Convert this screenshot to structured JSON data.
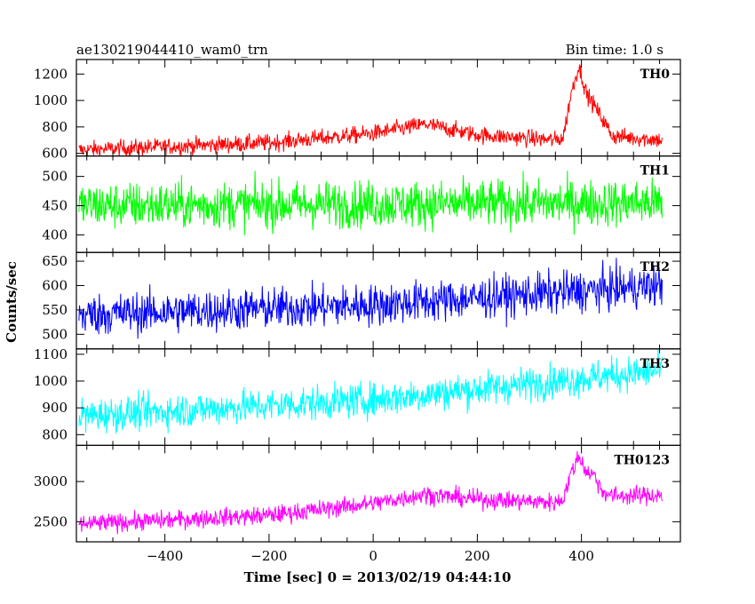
{
  "chart_data": {
    "type": "line",
    "title_left": "ae130219044410_wam0_trn",
    "title_right": "Bin time: 1.0 s",
    "xlabel": "Time [sec] 0 = 2013/02/19 04:44:10",
    "ylabel": "Counts/sec",
    "xlim": [
      -570,
      590
    ],
    "x_ticks": [
      -400,
      -200,
      0,
      200,
      400
    ],
    "x_range": [
      -565,
      555
    ],
    "grid": false,
    "panels": [
      {
        "name": "TH0",
        "color": "#ff0000",
        "ylim": [
          580,
          1310
        ],
        "y_ticks": [
          600,
          800,
          1000,
          1200
        ],
        "baseline": [
          [
            -565,
            625
          ],
          [
            -400,
            650
          ],
          [
            -200,
            680
          ],
          [
            0,
            750
          ],
          [
            100,
            820
          ],
          [
            200,
            740
          ],
          [
            350,
            700
          ],
          [
            365,
            720
          ],
          [
            380,
            1050
          ],
          [
            395,
            1260
          ],
          [
            410,
            1050
          ],
          [
            425,
            960
          ],
          [
            440,
            860
          ],
          [
            460,
            730
          ],
          [
            555,
            700
          ]
        ],
        "noise": 45
      },
      {
        "name": "TH1",
        "color": "#00ff00",
        "ylim": [
          370,
          535
        ],
        "y_ticks": [
          400,
          450,
          500
        ],
        "baseline": [
          [
            -565,
            450
          ],
          [
            555,
            455
          ]
        ],
        "noise": 28
      },
      {
        "name": "TH2",
        "color": "#0000ff",
        "ylim": [
          470,
          668
        ],
        "y_ticks": [
          500,
          550,
          600,
          650
        ],
        "baseline": [
          [
            -565,
            540
          ],
          [
            0,
            560
          ],
          [
            555,
            600
          ]
        ],
        "noise": 30
      },
      {
        "name": "TH3",
        "color": "#00ffff",
        "ylim": [
          760,
          1120
        ],
        "y_ticks": [
          800,
          900,
          1000,
          1100
        ],
        "baseline": [
          [
            -565,
            870
          ],
          [
            0,
            930
          ],
          [
            555,
            1040
          ]
        ],
        "noise": 45
      },
      {
        "name": "TH0123",
        "color": "#ff00ff",
        "ylim": [
          2250,
          3450
        ],
        "y_ticks": [
          2500,
          3000
        ],
        "baseline": [
          [
            -565,
            2470
          ],
          [
            -200,
            2580
          ],
          [
            0,
            2730
          ],
          [
            100,
            2840
          ],
          [
            200,
            2780
          ],
          [
            350,
            2740
          ],
          [
            365,
            2790
          ],
          [
            380,
            3100
          ],
          [
            395,
            3320
          ],
          [
            410,
            3120
          ],
          [
            425,
            3080
          ],
          [
            440,
            2880
          ],
          [
            460,
            2820
          ],
          [
            555,
            2830
          ]
        ],
        "noise": 80
      }
    ]
  }
}
